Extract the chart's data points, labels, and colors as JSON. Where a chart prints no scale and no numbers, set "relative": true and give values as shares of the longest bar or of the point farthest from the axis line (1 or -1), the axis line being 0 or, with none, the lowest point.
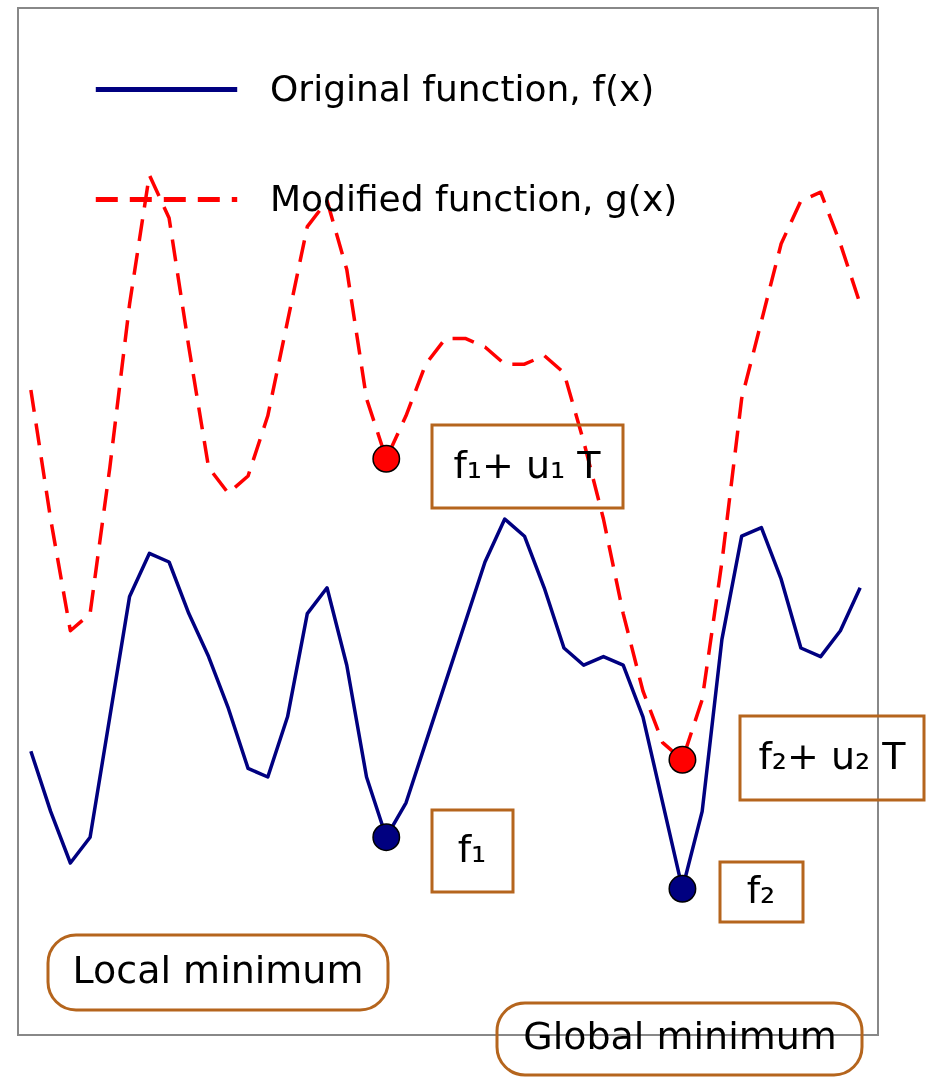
{
  "chart_data": {
    "type": "line",
    "relative": true,
    "legend": "top",
    "categories": [
      null,
      null,
      null,
      null,
      null,
      null,
      null,
      null,
      null,
      null,
      null,
      null,
      null,
      null,
      null,
      null,
      null,
      null,
      null,
      null,
      null,
      null,
      null,
      null,
      null,
      null,
      null,
      null,
      null,
      null,
      null,
      null,
      null,
      null,
      null,
      null,
      null,
      null,
      null,
      null,
      null,
      null,
      null
    ],
    "series": [
      {
        "name": "Original function, f(x)",
        "color": "#000080",
        "line_style": "solid",
        "values": [
          0.33,
          0.26,
          0.2,
          0.23,
          0.37,
          0.51,
          0.56,
          0.55,
          0.49,
          0.44,
          0.38,
          0.31,
          0.3,
          0.37,
          0.49,
          0.52,
          0.43,
          0.3,
          0.23,
          0.27,
          0.34,
          0.41,
          0.48,
          0.55,
          0.6,
          0.58,
          0.52,
          0.45,
          0.43,
          0.44,
          0.43,
          0.37,
          0.27,
          0.17,
          0.26,
          0.46,
          0.58,
          0.59,
          0.53,
          0.45,
          0.44,
          0.47,
          0.52
        ]
      },
      {
        "name": "Modified function, g(x)",
        "color": "#ff0000",
        "line_style": "dashed",
        "values": [
          0.75,
          0.6,
          0.47,
          0.49,
          0.66,
          0.85,
          1,
          0.95,
          0.8,
          0.66,
          0.63,
          0.65,
          0.72,
          0.83,
          0.94,
          0.97,
          0.89,
          0.74,
          0.67,
          0.72,
          0.78,
          0.81,
          0.81,
          0.8,
          0.78,
          0.78,
          0.79,
          0.77,
          0.69,
          0.6,
          0.49,
          0.4,
          0.34,
          0.32,
          0.39,
          0.55,
          0.74,
          0.83,
          0.92,
          0.97,
          0.98,
          0.92,
          0.85
        ]
      }
    ],
    "annotations": [
      "f₁+ u₁ T",
      "f₂+ u₂ T",
      "f₁",
      "f₂",
      "Local minimum",
      "Global minimum"
    ]
  }
}
